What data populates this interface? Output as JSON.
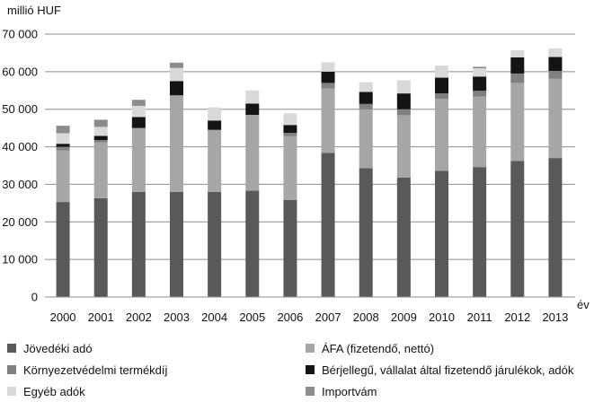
{
  "chart_data": {
    "type": "bar",
    "stacked": true,
    "title": "",
    "ylabel": "millió HUF",
    "xlabel": "év",
    "ylim": [
      0,
      70000
    ],
    "yticks": [
      0,
      10000,
      20000,
      30000,
      40000,
      50000,
      60000,
      70000
    ],
    "ytick_labels": [
      "0",
      "10 000",
      "20 000",
      "30 000",
      "40 000",
      "50 000",
      "60 000",
      "70 000"
    ],
    "grid": true,
    "legend_position": "bottom",
    "categories": [
      "2000",
      "2001",
      "2002",
      "2003",
      "2004",
      "2005",
      "2006",
      "2007",
      "2008",
      "2009",
      "2010",
      "2011",
      "2012",
      "2013"
    ],
    "series": [
      {
        "name": "Jövedéki adó",
        "color": "#595959",
        "values": [
          25300,
          26300,
          28000,
          28000,
          28000,
          28300,
          25800,
          38400,
          34300,
          31800,
          33600,
          34600,
          36200,
          37000
        ]
      },
      {
        "name": "ÁFA (fizetendő, nettó)",
        "color": "#a6a6a6",
        "values": [
          13700,
          14900,
          17000,
          25700,
          16500,
          20200,
          17000,
          17100,
          15700,
          16600,
          19200,
          18800,
          20800,
          21100
        ]
      },
      {
        "name": "Környezetvédelmi termékdíj",
        "color": "#808080",
        "values": [
          1000,
          600,
          0,
          0,
          0,
          0,
          900,
          1500,
          1400,
          1600,
          1400,
          1500,
          2500,
          2100
        ]
      },
      {
        "name": "Bérjellegű, vállalat által fizetendő járulékok, adók",
        "color": "#141414",
        "values": [
          800,
          1100,
          2900,
          3800,
          2500,
          3000,
          2100,
          3000,
          3200,
          4200,
          4200,
          3800,
          4300,
          3700
        ]
      },
      {
        "name": "Egyéb adók",
        "color": "#d9d9d9",
        "values": [
          2800,
          2400,
          3000,
          3500,
          3500,
          3500,
          3100,
          2500,
          2600,
          3500,
          3200,
          2200,
          1900,
          2300
        ]
      },
      {
        "name": "Importvám",
        "color": "#8c8c8c",
        "values": [
          2000,
          1900,
          1600,
          1400,
          0,
          0,
          0,
          0,
          0,
          0,
          0,
          400,
          0,
          0
        ]
      }
    ]
  }
}
